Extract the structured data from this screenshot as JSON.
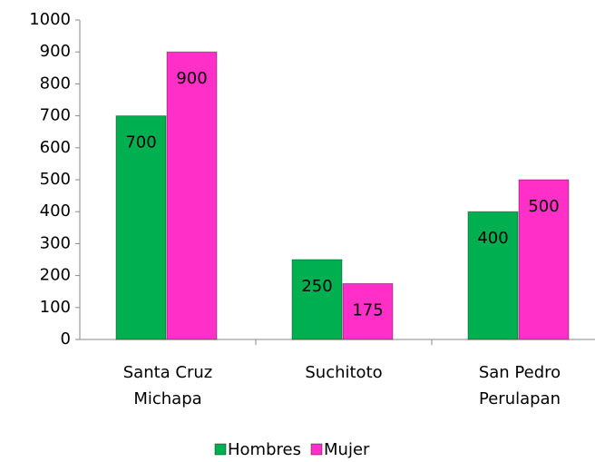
{
  "chart_data": {
    "type": "bar",
    "categories": [
      "Santa Cruz Michapa",
      "Suchitoto",
      "San Pedro Perulapan"
    ],
    "series": [
      {
        "name": "Hombres",
        "color": "#00b050",
        "values": [
          700,
          250,
          400
        ]
      },
      {
        "name": "Mujer",
        "color": "#ff2fc8",
        "values": [
          900,
          175,
          500
        ]
      }
    ],
    "ylim": [
      0,
      1000
    ],
    "yticks": [
      0,
      100,
      200,
      300,
      400,
      500,
      600,
      700,
      800,
      900,
      1000
    ],
    "legend": "bottom"
  }
}
